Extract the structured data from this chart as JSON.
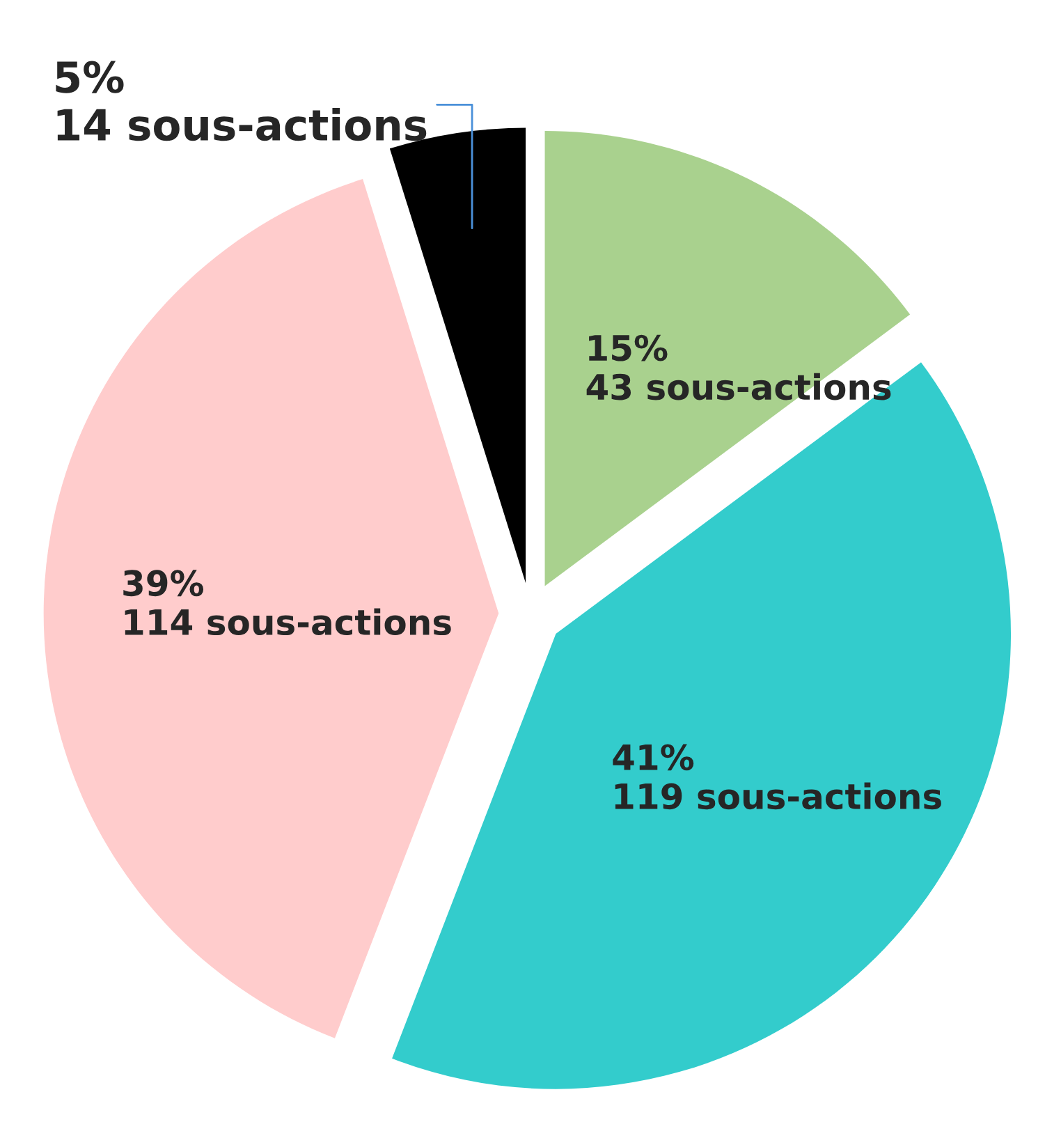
{
  "chart_data": {
    "type": "pie",
    "categories": [
      null,
      null,
      null,
      null
    ],
    "values": [
      43,
      119,
      114,
      14
    ],
    "colors": [
      "#a9d18e",
      "#33cccc",
      "#ffcccc",
      "#000000"
    ],
    "value_labels": [
      "15%\n43 sous-actions",
      "41%\n119 sous-actions",
      "39%\n114 sous-actions",
      "5%\n14 sous-actions"
    ],
    "legend": false
  }
}
